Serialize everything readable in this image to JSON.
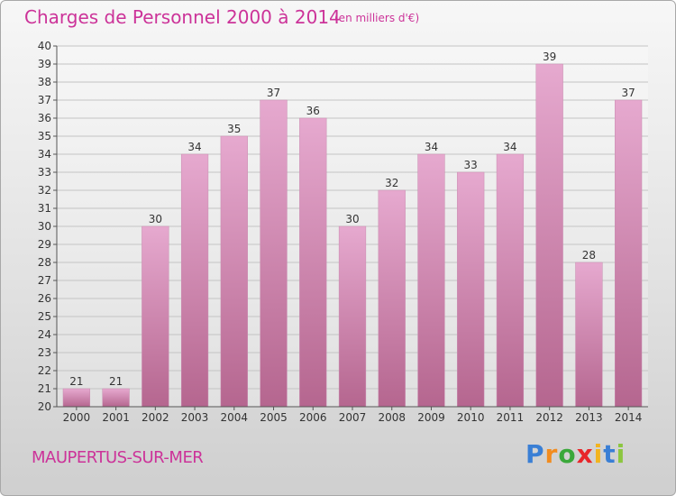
{
  "chart_data": {
    "type": "bar",
    "title": "Charges de Personnel 2000 à 2014",
    "subtitle": "(en milliers d'€)",
    "categories": [
      "2000",
      "2001",
      "2002",
      "2003",
      "2004",
      "2005",
      "2006",
      "2007",
      "2008",
      "2009",
      "2010",
      "2011",
      "2012",
      "2013",
      "2014"
    ],
    "values": [
      21,
      21,
      30,
      34,
      35,
      37,
      36,
      30,
      32,
      34,
      33,
      34,
      39,
      28,
      37
    ],
    "ylim": [
      20,
      40
    ],
    "yticks": [
      20,
      21,
      22,
      23,
      24,
      25,
      26,
      27,
      28,
      29,
      30,
      31,
      32,
      33,
      34,
      35,
      36,
      37,
      38,
      39,
      40
    ],
    "grid": "horizontal",
    "bar_color": "#d98fbc",
    "text_color": "#cc3399"
  },
  "footer": {
    "commune": "MAUPERTUS-SUR-MER",
    "logo_letters": [
      {
        "char": "P",
        "color": "#3a7fd5"
      },
      {
        "char": "r",
        "color": "#f28c1e"
      },
      {
        "char": "o",
        "color": "#3aa83a"
      },
      {
        "char": "x",
        "color": "#e8262a"
      },
      {
        "char": "i",
        "color": "#f2b41e"
      },
      {
        "char": "t",
        "color": "#3a7fd5"
      },
      {
        "char": "i",
        "color": "#8cc63f"
      }
    ]
  }
}
